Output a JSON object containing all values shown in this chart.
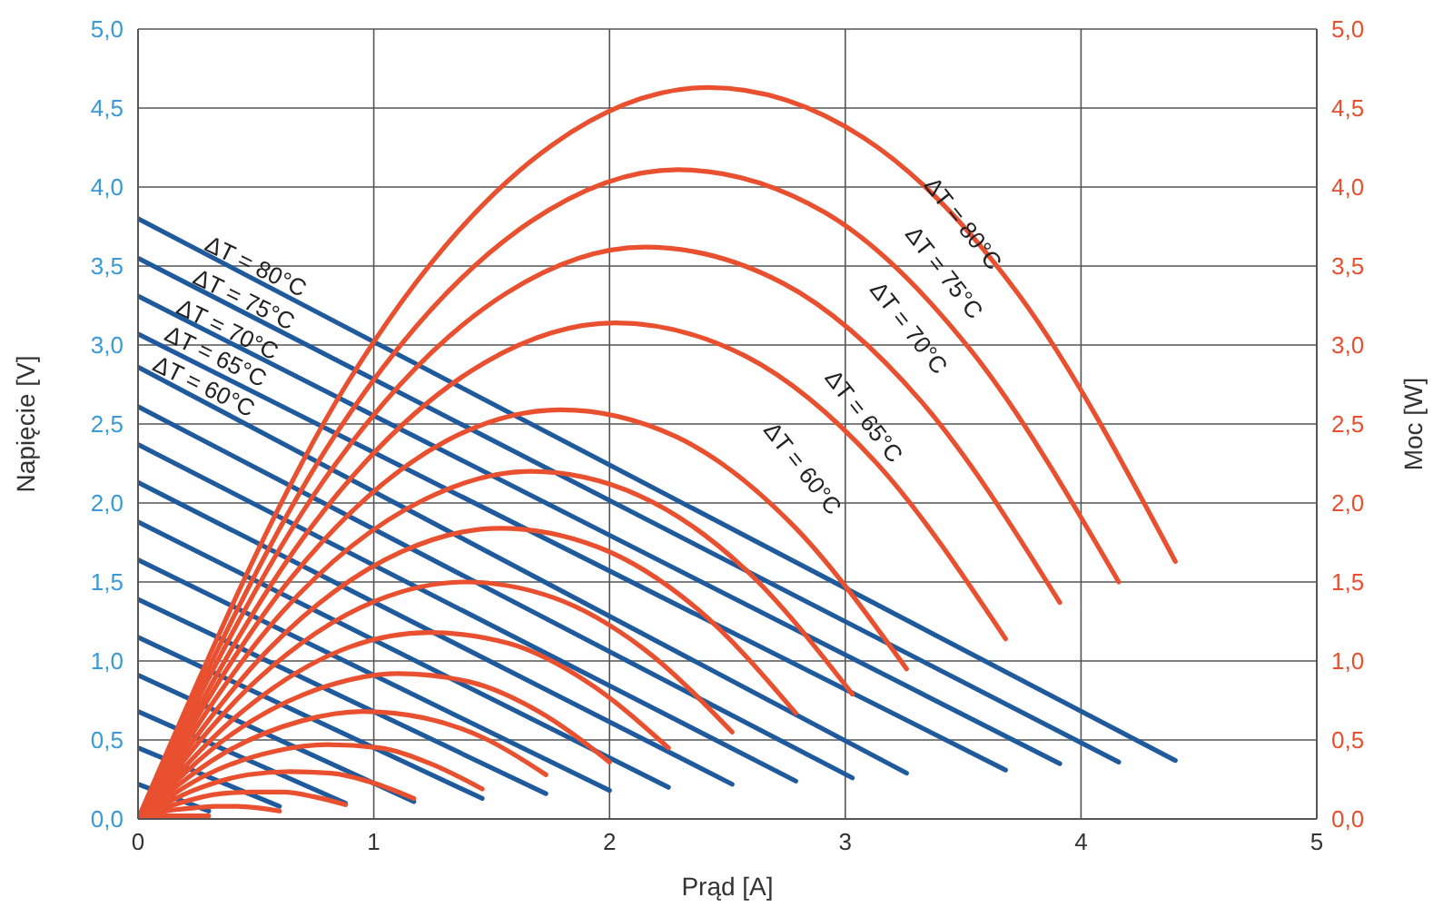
{
  "chart_data": {
    "type": "line",
    "xlabel": "Prąd [A]",
    "ylabel": "Napięcie [V]",
    "y2label": "Moc [W]",
    "xlim": [
      0,
      5
    ],
    "xticks": [
      0,
      1,
      2,
      3,
      4,
      5
    ],
    "ylim": [
      0,
      5
    ],
    "yticks": [
      {
        "value": 0,
        "label": "0,0"
      },
      {
        "value": 0.5,
        "label": "0,5"
      },
      {
        "value": 1,
        "label": "1,0"
      },
      {
        "value": 1.5,
        "label": "1,5"
      },
      {
        "value": 2,
        "label": "2,0"
      },
      {
        "value": 2.5,
        "label": "2,5"
      },
      {
        "value": 3,
        "label": "3,0"
      },
      {
        "value": 3.5,
        "label": "3,5"
      },
      {
        "value": 4,
        "label": "4,0"
      },
      {
        "value": 4.5,
        "label": "4,5"
      },
      {
        "value": 5,
        "label": "5,0"
      }
    ],
    "y2lim": [
      0,
      5
    ],
    "y2ticks": [
      {
        "value": 0,
        "label": "0,0"
      },
      {
        "value": 0.5,
        "label": "0,5"
      },
      {
        "value": 1,
        "label": "1,0"
      },
      {
        "value": 1.5,
        "label": "1,5"
      },
      {
        "value": 2,
        "label": "2,0"
      },
      {
        "value": 2.5,
        "label": "2,5"
      },
      {
        "value": 3,
        "label": "3,0"
      },
      {
        "value": 3.5,
        "label": "3,5"
      },
      {
        "value": 4,
        "label": "4,0"
      },
      {
        "value": 4.5,
        "label": "4,5"
      },
      {
        "value": 5,
        "label": "5,0"
      }
    ],
    "grid": true,
    "marker": "none",
    "line_style": "solid",
    "series": [
      {
        "color": "#1f5a9c",
        "x": [
          0,
          4.4
        ],
        "values": [
          3.8,
          0.37
        ]
      },
      {
        "color": "#1f5a9c",
        "x": [
          0,
          4.16
        ],
        "values": [
          3.55,
          0.36
        ]
      },
      {
        "color": "#1f5a9c",
        "x": [
          0,
          3.91
        ],
        "values": [
          3.31,
          0.35
        ]
      },
      {
        "color": "#1f5a9c",
        "x": [
          0,
          3.68
        ],
        "values": [
          3.07,
          0.31
        ]
      },
      {
        "color": "#1f5a9c",
        "x": [
          0,
          3.26
        ],
        "values": [
          2.86,
          0.29
        ]
      },
      {
        "color": "#1f5a9c",
        "x": [
          0,
          3.03
        ],
        "values": [
          2.61,
          0.26
        ]
      },
      {
        "color": "#1f5a9c",
        "x": [
          0,
          2.79
        ],
        "values": [
          2.37,
          0.24
        ]
      },
      {
        "color": "#1f5a9c",
        "x": [
          0,
          2.52
        ],
        "values": [
          2.13,
          0.22
        ]
      },
      {
        "color": "#1f5a9c",
        "x": [
          0,
          2.25
        ],
        "values": [
          1.88,
          0.2
        ]
      },
      {
        "color": "#1f5a9c",
        "x": [
          0,
          2.0
        ],
        "values": [
          1.64,
          0.18
        ]
      },
      {
        "color": "#1f5a9c",
        "x": [
          0,
          1.73
        ],
        "values": [
          1.39,
          0.16
        ]
      },
      {
        "color": "#1f5a9c",
        "x": [
          0,
          1.46
        ],
        "values": [
          1.15,
          0.13
        ]
      },
      {
        "color": "#1f5a9c",
        "x": [
          0,
          1.17
        ],
        "values": [
          0.91,
          0.11
        ]
      },
      {
        "color": "#1f5a9c",
        "x": [
          0,
          0.88
        ],
        "values": [
          0.68,
          0.1
        ]
      },
      {
        "color": "#1f5a9c",
        "x": [
          0,
          0.6
        ],
        "values": [
          0.45,
          0.08
        ]
      },
      {
        "color": "#1f5a9c",
        "x": [
          0,
          0.3
        ],
        "values": [
          0.22,
          0.05
        ]
      },
      {
        "color": "#e8502f",
        "axis": "y2",
        "x": [
          0,
          0.88,
          1.76,
          2.42,
          3.08,
          3.74,
          4.4
        ],
        "values": [
          0,
          2.74,
          4.27,
          4.63,
          4.31,
          3.31,
          1.63
        ]
      },
      {
        "color": "#e8502f",
        "axis": "y2",
        "x": [
          0,
          0.832,
          1.664,
          2.288,
          2.912,
          3.536,
          4.16
        ],
        "values": [
          0,
          2.42,
          3.78,
          4.11,
          3.84,
          2.96,
          1.5
        ]
      },
      {
        "color": "#e8502f",
        "axis": "y2",
        "x": [
          0,
          0.782,
          1.564,
          2.15,
          2.737,
          3.324,
          3.91
        ],
        "values": [
          0,
          2.13,
          3.33,
          3.62,
          3.39,
          2.64,
          1.37
        ]
      },
      {
        "color": "#e8502f",
        "axis": "y2",
        "x": [
          0,
          0.736,
          1.472,
          2.024,
          2.576,
          3.128,
          3.68
        ],
        "values": [
          0,
          1.85,
          2.89,
          3.14,
          2.93,
          2.26,
          1.14
        ]
      },
      {
        "color": "#e8502f",
        "axis": "y2",
        "x": [
          0,
          0.652,
          1.304,
          1.793,
          2.282,
          2.771,
          3.26
        ],
        "values": [
          0,
          1.53,
          2.39,
          2.59,
          2.42,
          1.87,
          0.95
        ]
      },
      {
        "color": "#e8502f",
        "axis": "y2",
        "x": [
          0,
          0.606,
          1.212,
          1.667,
          2.121,
          2.576,
          3.03
        ],
        "values": [
          0,
          1.3,
          2.02,
          2.2,
          2.05,
          1.58,
          0.79
        ]
      },
      {
        "color": "#e8502f",
        "axis": "y2",
        "x": [
          0,
          0.558,
          1.116,
          1.535,
          1.953,
          2.372,
          2.79
        ],
        "values": [
          0,
          1.08,
          1.69,
          1.84,
          1.72,
          1.33,
          0.67
        ]
      },
      {
        "color": "#e8502f",
        "axis": "y2",
        "x": [
          0,
          0.504,
          1.008,
          1.386,
          1.764,
          2.142,
          2.52
        ],
        "values": [
          0,
          0.88,
          1.38,
          1.5,
          1.4,
          1.08,
          0.55
        ]
      },
      {
        "color": "#e8502f",
        "axis": "y2",
        "x": [
          0,
          0.45,
          0.9,
          1.2375,
          1.575,
          1.9125,
          2.25
        ],
        "values": [
          0,
          0.69,
          1.09,
          1.18,
          1.11,
          0.86,
          0.45
        ]
      },
      {
        "color": "#e8502f",
        "axis": "y2",
        "x": [
          0,
          0.4,
          0.8,
          1.1,
          1.4,
          1.7,
          2.0
        ],
        "values": [
          0,
          0.54,
          0.84,
          0.92,
          0.87,
          0.68,
          0.36
        ]
      },
      {
        "color": "#e8502f",
        "axis": "y2",
        "x": [
          0,
          0.346,
          0.692,
          0.9515,
          1.211,
          1.4705,
          1.73
        ],
        "values": [
          0,
          0.4,
          0.62,
          0.68,
          0.64,
          0.51,
          0.28
        ]
      },
      {
        "color": "#e8502f",
        "axis": "y2",
        "x": [
          0,
          0.292,
          0.584,
          0.803,
          1.022,
          1.241,
          1.46
        ],
        "values": [
          0,
          0.28,
          0.43,
          0.47,
          0.45,
          0.35,
          0.19
        ]
      },
      {
        "color": "#e8502f",
        "axis": "y2",
        "x": [
          0,
          0.234,
          0.468,
          0.6435,
          0.819,
          0.9945,
          1.17
        ],
        "values": [
          0,
          0.18,
          0.28,
          0.3,
          0.29,
          0.23,
          0.13
        ]
      },
      {
        "color": "#e8502f",
        "axis": "y2",
        "x": [
          0,
          0.176,
          0.352,
          0.484,
          0.616,
          0.748,
          0.88
        ],
        "values": [
          0,
          0.1,
          0.16,
          0.17,
          0.17,
          0.14,
          0.09
        ]
      },
      {
        "color": "#e8502f",
        "axis": "y2",
        "x": [
          0,
          0.12,
          0.24,
          0.33,
          0.42,
          0.51,
          0.6
        ],
        "values": [
          0,
          0.05,
          0.07,
          0.08,
          0.08,
          0.07,
          0.05
        ]
      },
      {
        "color": "#e8502f",
        "axis": "y2",
        "x": [
          0,
          0.06,
          0.12,
          0.165,
          0.21,
          0.255,
          0.3
        ],
        "values": [
          0,
          0.01,
          0.02,
          0.02,
          0.02,
          0.02,
          0.02
        ]
      }
    ],
    "annotations": [
      "ΔT = 80°C",
      "ΔT = 75°C",
      "ΔT = 70°C",
      "ΔT = 65°C",
      "ΔT = 60°C",
      "ΔT = 80°C",
      "ΔT = 75°C",
      "ΔT = 70°C",
      "ΔT = 65°C",
      "ΔT = 60°C"
    ]
  }
}
